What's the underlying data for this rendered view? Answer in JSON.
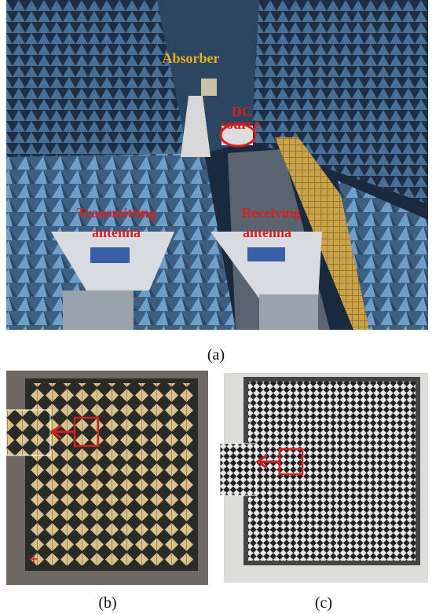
{
  "figure": {
    "panels": [
      {
        "caption": "(a)",
        "annotations": [
          {
            "lines": [
              "Absorber"
            ]
          },
          {
            "lines": [
              "DC",
              "source"
            ]
          },
          {
            "lines": [
              "Transmitting",
              "antenna"
            ]
          },
          {
            "lines": [
              "Receiving",
              "antenna"
            ]
          }
        ]
      },
      {
        "caption": "(b)"
      },
      {
        "caption": "(c)"
      }
    ]
  }
}
